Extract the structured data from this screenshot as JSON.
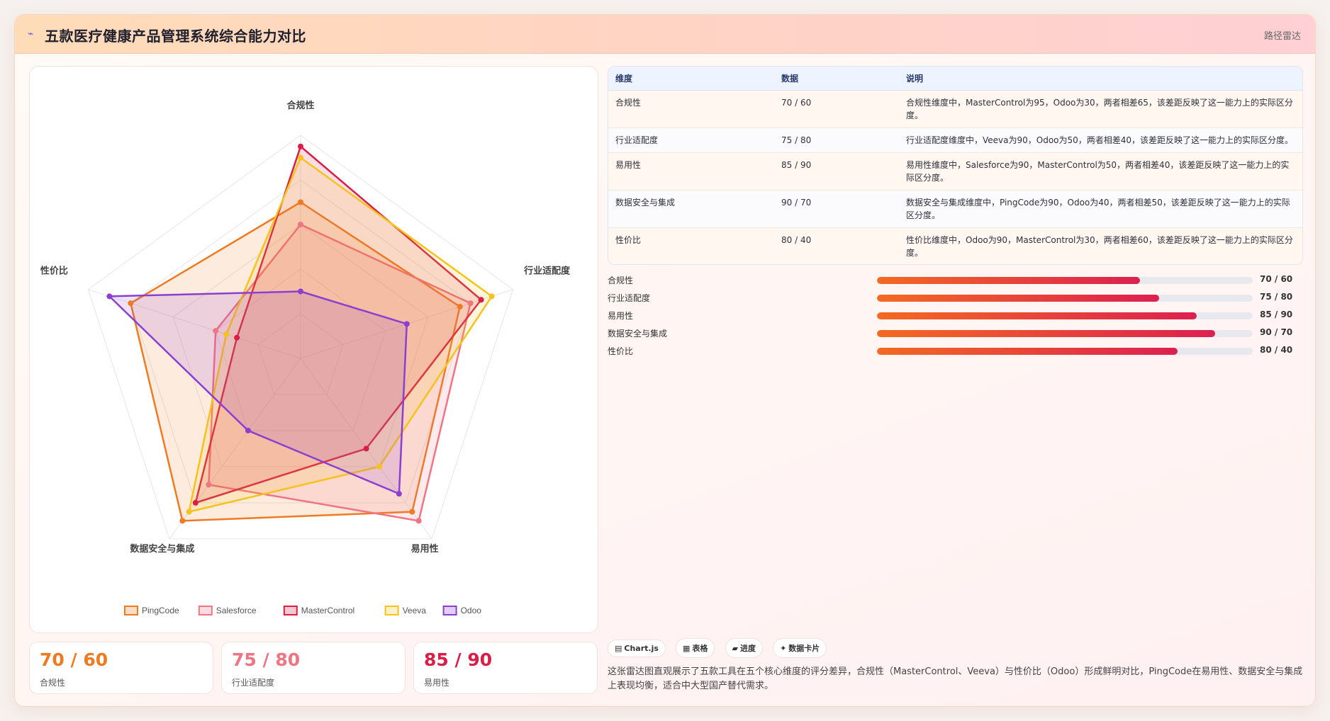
{
  "header": {
    "logo": "⌁",
    "title": "五款医疗健康产品管理系统综合能力对比",
    "chart_type_label": "路径雷达"
  },
  "chart_data": {
    "type": "radar",
    "axes": [
      "合规性",
      "行业适配度",
      "易用性",
      "数据安全与集成",
      "性价比"
    ],
    "range": [
      0,
      100
    ],
    "series": [
      {
        "name": "PingCode",
        "color": "#f07a22",
        "values": [
          70,
          75,
          85,
          90,
          80
        ]
      },
      {
        "name": "Salesforce",
        "color": "#f07582",
        "values": [
          60,
          80,
          90,
          70,
          40
        ]
      },
      {
        "name": "MasterControl",
        "color": "#d91e48",
        "values": [
          95,
          85,
          50,
          80,
          30
        ]
      },
      {
        "name": "Veeva",
        "color": "#f6c21c",
        "values": [
          90,
          90,
          60,
          85,
          35
        ]
      },
      {
        "name": "Odoo",
        "color": "#8a3fd1",
        "values": [
          30,
          50,
          75,
          40,
          90
        ]
      }
    ]
  },
  "stats": [
    {
      "value": "70 / 60",
      "label": "合规性",
      "color": "#f07a22"
    },
    {
      "value": "75 / 80",
      "label": "行业适配度",
      "color": "#f07582"
    },
    {
      "value": "85 / 90",
      "label": "易用性",
      "color": "#d91e48"
    }
  ],
  "table": {
    "headers": [
      "维度",
      "数据",
      "说明"
    ],
    "rows": [
      {
        "dim": "合规性",
        "data": "70 / 60",
        "desc": "合规性维度中，MasterControl为95，Odoo为30，两者相差65，该差距反映了这一能力上的实际区分度。"
      },
      {
        "dim": "行业适配度",
        "data": "75 / 80",
        "desc": "行业适配度维度中，Veeva为90，Odoo为50，两者相差40，该差距反映了这一能力上的实际区分度。"
      },
      {
        "dim": "易用性",
        "data": "85 / 90",
        "desc": "易用性维度中，Salesforce为90，MasterControl为50，两者相差40，该差距反映了这一能力上的实际区分度。"
      },
      {
        "dim": "数据安全与集成",
        "data": "90 / 70",
        "desc": "数据安全与集成维度中，PingCode为90，Odoo为40，两者相差50，该差距反映了这一能力上的实际区分度。"
      },
      {
        "dim": "性价比",
        "data": "80 / 40",
        "desc": "性价比维度中，Odoo为90，MasterControl为30，两者相差60，该差距反映了这一能力上的实际区分度。"
      }
    ]
  },
  "progress": [
    {
      "label": "合规性",
      "value": "70 / 60",
      "fraction": 0.7
    },
    {
      "label": "行业适配度",
      "value": "75 / 80",
      "fraction": 0.75
    },
    {
      "label": "易用性",
      "value": "85 / 90",
      "fraction": 0.85
    },
    {
      "label": "数据安全与集成",
      "value": "90 / 70",
      "fraction": 0.9
    },
    {
      "label": "性价比",
      "value": "80 / 40",
      "fraction": 0.8
    }
  ],
  "chips": [
    {
      "icon": "▤",
      "label": "Chart.js"
    },
    {
      "icon": "▦",
      "label": "表格"
    },
    {
      "icon": "▰",
      "label": "进度"
    },
    {
      "icon": "✦",
      "label": "数据卡片"
    }
  ],
  "summary": "这张雷达图直观展示了五款工具在五个核心维度的评分差异，合规性（MasterControl、Veeva）与性价比（Odoo）形成鲜明对比，PingCode在易用性、数据安全与集成上表现均衡，适合中大型国产替代需求。"
}
